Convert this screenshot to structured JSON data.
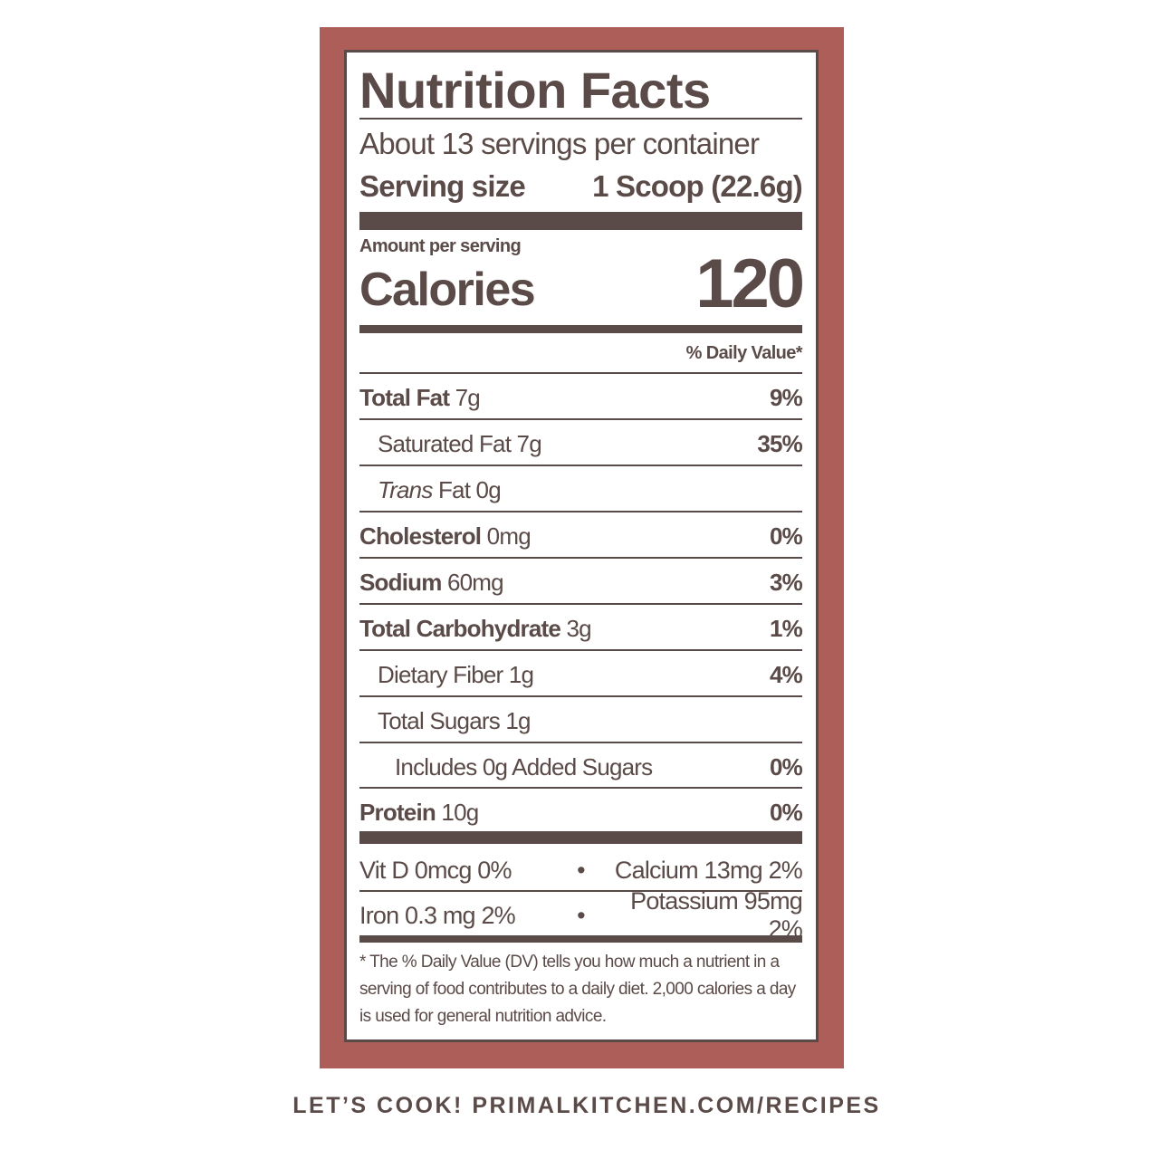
{
  "colors": {
    "frame": "#ad5e58",
    "ink": "#5a4a48",
    "panel": "#ffffff"
  },
  "label": {
    "title": "Nutrition Facts",
    "servings": "About 13 servings per container",
    "serving_size_label": "Serving size",
    "serving_size_value": "1 Scoop (22.6g)",
    "amount_per_serving": "Amount per serving",
    "calories_label": "Calories",
    "calories_value": "120",
    "dv_header": "% Daily Value*",
    "nutrients": [
      {
        "name": "Total Fat",
        "amount": "7g",
        "dv": "9%"
      },
      {
        "name": "Saturated Fat 7g",
        "amount": "",
        "dv": "35%"
      },
      {
        "name": "Trans",
        "amount": "Fat 0g",
        "dv": ""
      },
      {
        "name": "Cholesterol",
        "amount": "0mg",
        "dv": "0%"
      },
      {
        "name": "Sodium",
        "amount": "60mg",
        "dv": "3%"
      },
      {
        "name": "Total Carbohydrate",
        "amount": "3g",
        "dv": "1%"
      },
      {
        "name": "Dietary Fiber 1g",
        "amount": "",
        "dv": "4%"
      },
      {
        "name": "Total Sugars 1g",
        "amount": "",
        "dv": ""
      },
      {
        "name": "Includes 0g Added Sugars",
        "amount": "",
        "dv": "0%"
      },
      {
        "name": "Protein",
        "amount": "10g",
        "dv": "0%"
      }
    ],
    "vitamins": [
      {
        "left": "Vit D 0mcg 0%",
        "bullet": "•",
        "right": "Calcium 13mg 2%"
      },
      {
        "left": "Iron 0.3 mg 2%",
        "bullet": "•",
        "right": "Potassium 95mg 2%"
      }
    ],
    "footnote": "* The % Daily Value (DV) tells you how much a nutrient in a serving of food contributes to a daily diet. 2,000 calories a day is used for general nutrition advice."
  },
  "tagline": "LET’S COOK! PRIMALKITCHEN.COM/RECIPES"
}
